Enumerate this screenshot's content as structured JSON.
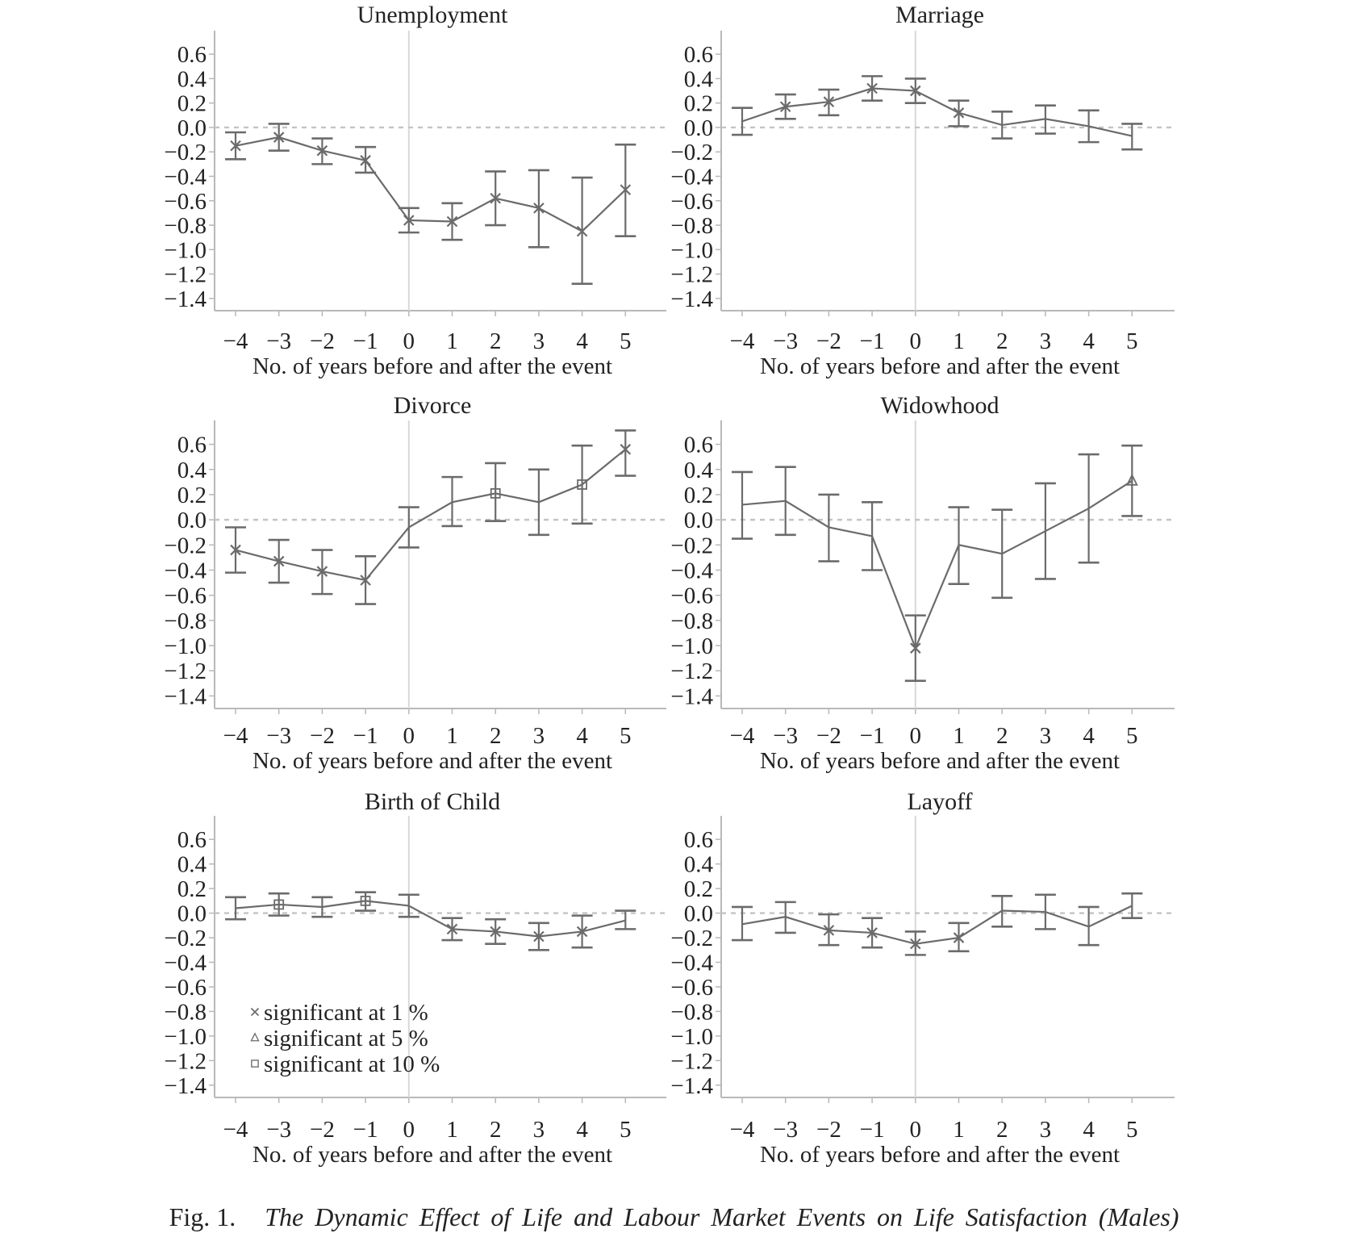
{
  "chart_data": [
    {
      "type": "line",
      "title": "Unemployment",
      "xlabel": "No. of years before and after the event",
      "x": [
        -4,
        -3,
        -2,
        -1,
        0,
        1,
        2,
        3,
        4,
        5
      ],
      "x_tick_labels": [
        "−4",
        "−3",
        "−2",
        "−1",
        "0",
        "1",
        "2",
        "3",
        "4",
        "5"
      ],
      "y_tick_labels": [
        "0.6",
        "0.4",
        "0.2",
        "0.0",
        "−0.2",
        "−0.4",
        "−0.6",
        "−0.8",
        "−1.0",
        "−1.2",
        "−1.4"
      ],
      "ylim": [
        -1.5,
        0.7
      ],
      "values": [
        -0.15,
        -0.08,
        -0.19,
        -0.27,
        -0.76,
        -0.77,
        -0.58,
        -0.66,
        -0.85,
        -0.51
      ],
      "ci_low": [
        -0.26,
        -0.19,
        -0.3,
        -0.37,
        -0.86,
        -0.92,
        -0.8,
        -0.98,
        -1.28,
        -0.89
      ],
      "ci_high": [
        -0.04,
        0.03,
        -0.09,
        -0.16,
        -0.66,
        -0.62,
        -0.36,
        -0.35,
        -0.41,
        -0.14
      ],
      "significance": [
        "1%",
        "1%",
        "1%",
        "1%",
        "1%",
        "1%",
        "1%",
        "1%",
        "1%",
        "1%"
      ]
    },
    {
      "type": "line",
      "title": "Marriage",
      "xlabel": "No. of years before and after the event",
      "x": [
        -4,
        -3,
        -2,
        -1,
        0,
        1,
        2,
        3,
        4,
        5
      ],
      "x_tick_labels": [
        "−4",
        "−3",
        "−2",
        "−1",
        "0",
        "1",
        "2",
        "3",
        "4",
        "5"
      ],
      "y_tick_labels": [
        "0.6",
        "0.4",
        "0.2",
        "0.0",
        "−0.2",
        "−0.4",
        "−0.6",
        "−0.8",
        "−1.0",
        "−1.2",
        "−1.4"
      ],
      "ylim": [
        -1.5,
        0.7
      ],
      "values": [
        0.05,
        0.17,
        0.21,
        0.32,
        0.3,
        0.12,
        0.02,
        0.07,
        0.01,
        -0.07
      ],
      "ci_low": [
        -0.06,
        0.07,
        0.1,
        0.22,
        0.2,
        0.01,
        -0.09,
        -0.05,
        -0.12,
        -0.18
      ],
      "ci_high": [
        0.16,
        0.27,
        0.31,
        0.42,
        0.4,
        0.22,
        0.13,
        0.18,
        0.14,
        0.03
      ],
      "significance": [
        "none",
        "1%",
        "1%",
        "1%",
        "1%",
        "1%",
        "none",
        "none",
        "none",
        "none"
      ]
    },
    {
      "type": "line",
      "title": "Divorce",
      "xlabel": "No. of years before and after the event",
      "x": [
        -4,
        -3,
        -2,
        -1,
        0,
        1,
        2,
        3,
        4,
        5
      ],
      "x_tick_labels": [
        "−4",
        "−3",
        "−2",
        "−1",
        "0",
        "1",
        "2",
        "3",
        "4",
        "5"
      ],
      "y_tick_labels": [
        "0.6",
        "0.4",
        "0.2",
        "0.0",
        "−0.2",
        "−0.4",
        "−0.6",
        "−0.8",
        "−1.0",
        "−1.2",
        "−1.4"
      ],
      "ylim": [
        -1.5,
        0.7
      ],
      "values": [
        -0.24,
        -0.33,
        -0.41,
        -0.48,
        -0.06,
        0.14,
        0.21,
        0.14,
        0.28,
        0.56
      ],
      "ci_low": [
        -0.42,
        -0.5,
        -0.59,
        -0.67,
        -0.22,
        -0.05,
        -0.01,
        -0.12,
        -0.03,
        0.35
      ],
      "ci_high": [
        -0.06,
        -0.16,
        -0.24,
        -0.29,
        0.1,
        0.34,
        0.45,
        0.4,
        0.59,
        0.71
      ],
      "significance": [
        "1%",
        "1%",
        "1%",
        "1%",
        "none",
        "none",
        "10%",
        "none",
        "10%",
        "1%"
      ]
    },
    {
      "type": "line",
      "title": "Widowhood",
      "xlabel": "No. of years before and after the event",
      "x": [
        -4,
        -3,
        -2,
        -1,
        0,
        1,
        2,
        3,
        4,
        5
      ],
      "x_tick_labels": [
        "−4",
        "−3",
        "−2",
        "−1",
        "0",
        "1",
        "2",
        "3",
        "4",
        "5"
      ],
      "y_tick_labels": [
        "0.6",
        "0.4",
        "0.2",
        "0.0",
        "−0.2",
        "−0.4",
        "−0.6",
        "−0.8",
        "−1.0",
        "−1.2",
        "−1.4"
      ],
      "ylim": [
        -1.5,
        0.7
      ],
      "values": [
        0.12,
        0.15,
        -0.06,
        -0.13,
        -1.02,
        -0.2,
        -0.27,
        -0.09,
        0.09,
        0.31
      ],
      "ci_low": [
        -0.15,
        -0.12,
        -0.33,
        -0.4,
        -1.28,
        -0.51,
        -0.62,
        -0.47,
        -0.34,
        0.03
      ],
      "ci_high": [
        0.38,
        0.42,
        0.2,
        0.14,
        -0.76,
        0.1,
        0.08,
        0.29,
        0.52,
        0.59
      ],
      "significance": [
        "none",
        "none",
        "none",
        "none",
        "1%",
        "none",
        "none",
        "none",
        "none",
        "5%"
      ]
    },
    {
      "type": "line",
      "title": "Birth of Child",
      "xlabel": "No. of years before and after the event",
      "x": [
        -4,
        -3,
        -2,
        -1,
        0,
        1,
        2,
        3,
        4,
        5
      ],
      "x_tick_labels": [
        "−4",
        "−3",
        "−2",
        "−1",
        "0",
        "1",
        "2",
        "3",
        "4",
        "5"
      ],
      "y_tick_labels": [
        "0.6",
        "0.4",
        "0.2",
        "0.0",
        "−0.2",
        "−0.4",
        "−0.6",
        "−0.8",
        "−1.0",
        "−1.2",
        "−1.4"
      ],
      "ylim": [
        -1.5,
        0.7
      ],
      "values": [
        0.04,
        0.07,
        0.05,
        0.1,
        0.06,
        -0.13,
        -0.15,
        -0.19,
        -0.15,
        -0.06
      ],
      "ci_low": [
        -0.05,
        -0.02,
        -0.03,
        0.02,
        -0.03,
        -0.22,
        -0.25,
        -0.3,
        -0.28,
        -0.13
      ],
      "ci_high": [
        0.13,
        0.16,
        0.13,
        0.17,
        0.15,
        -0.04,
        -0.05,
        -0.08,
        -0.02,
        0.02
      ],
      "significance": [
        "none",
        "10%",
        "none",
        "10%",
        "none",
        "1%",
        "1%",
        "1%",
        "1%",
        "none"
      ],
      "legend": {
        "placement": "bottom-left",
        "entries": [
          "significant at 1 %",
          "significant at 5 %",
          "significant at 10 %"
        ]
      }
    },
    {
      "type": "line",
      "title": "Layoff",
      "xlabel": "No. of years before and after the event",
      "x": [
        -4,
        -3,
        -2,
        -1,
        0,
        1,
        2,
        3,
        4,
        5
      ],
      "x_tick_labels": [
        "−4",
        "−3",
        "−2",
        "−1",
        "0",
        "1",
        "2",
        "3",
        "4",
        "5"
      ],
      "y_tick_labels": [
        "0.6",
        "0.4",
        "0.2",
        "0.0",
        "−0.2",
        "−0.4",
        "−0.6",
        "−0.8",
        "−1.0",
        "−1.2",
        "−1.4"
      ],
      "ylim": [
        -1.5,
        0.7
      ],
      "values": [
        -0.09,
        -0.03,
        -0.14,
        -0.16,
        -0.25,
        -0.2,
        0.02,
        0.01,
        -0.11,
        0.06
      ],
      "ci_low": [
        -0.22,
        -0.16,
        -0.26,
        -0.28,
        -0.34,
        -0.31,
        -0.11,
        -0.13,
        -0.26,
        -0.04
      ],
      "ci_high": [
        0.05,
        0.09,
        -0.01,
        -0.04,
        -0.15,
        -0.08,
        0.14,
        0.15,
        0.05,
        0.16
      ],
      "significance": [
        "none",
        "none",
        "1%",
        "1%",
        "1%",
        "1%",
        "none",
        "none",
        "none",
        "none"
      ]
    }
  ],
  "caption": {
    "label": "Fig. 1.",
    "title": "The Dynamic Effect of Life and Labour Market Events on Life Satisfaction (Males)"
  },
  "colors": {
    "series": "#6b6b6b",
    "axis": "#b8b8b8",
    "zero_line": "#c4c4c4",
    "event_line": "#d8d8d8",
    "text": "#222222"
  }
}
